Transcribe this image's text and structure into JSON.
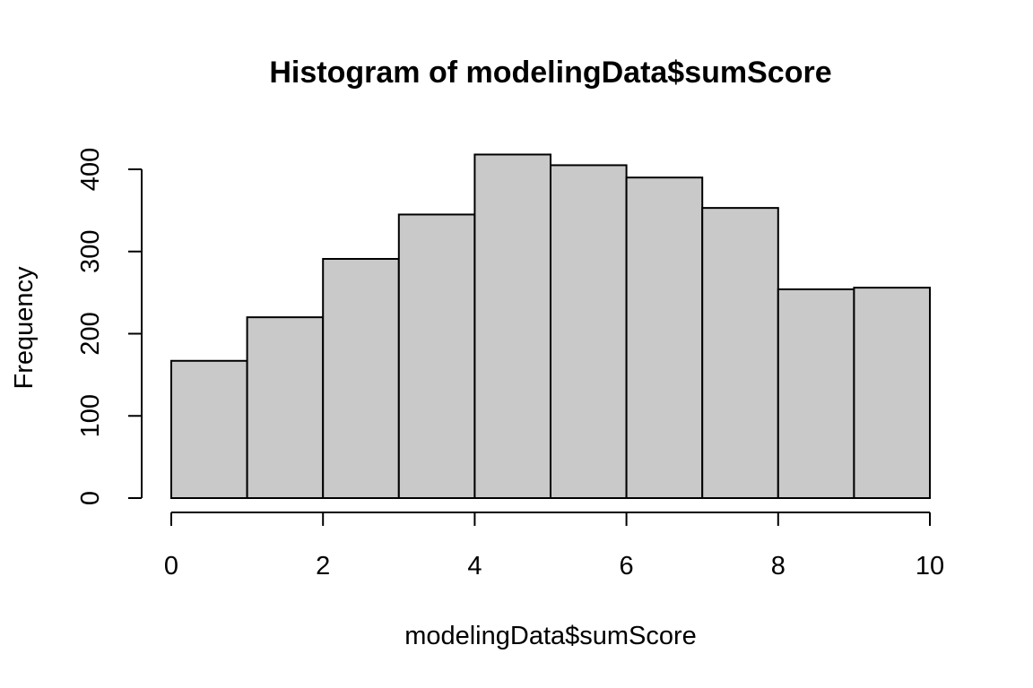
{
  "chart_data": {
    "type": "bar",
    "title": "Histogram of modelingData$sumScore",
    "xlabel": "modelingData$sumScore",
    "ylabel": "Frequency",
    "bins": [
      {
        "from": 0,
        "to": 1,
        "count": 167
      },
      {
        "from": 1,
        "to": 2,
        "count": 220
      },
      {
        "from": 2,
        "to": 3,
        "count": 291
      },
      {
        "from": 3,
        "to": 4,
        "count": 345
      },
      {
        "from": 4,
        "to": 5,
        "count": 418
      },
      {
        "from": 5,
        "to": 6,
        "count": 405
      },
      {
        "from": 6,
        "to": 7,
        "count": 390
      },
      {
        "from": 7,
        "to": 8,
        "count": 353
      },
      {
        "from": 8,
        "to": 9,
        "count": 254
      },
      {
        "from": 9,
        "to": 10,
        "count": 256
      }
    ],
    "xlim": [
      0,
      10
    ],
    "ylim": [
      0,
      400
    ],
    "x_ticks": [
      "0",
      "2",
      "4",
      "6",
      "8",
      "10"
    ],
    "y_ticks": [
      "0",
      "100",
      "200",
      "300",
      "400"
    ],
    "grid": false,
    "bar_color": "#c9c9c9"
  }
}
